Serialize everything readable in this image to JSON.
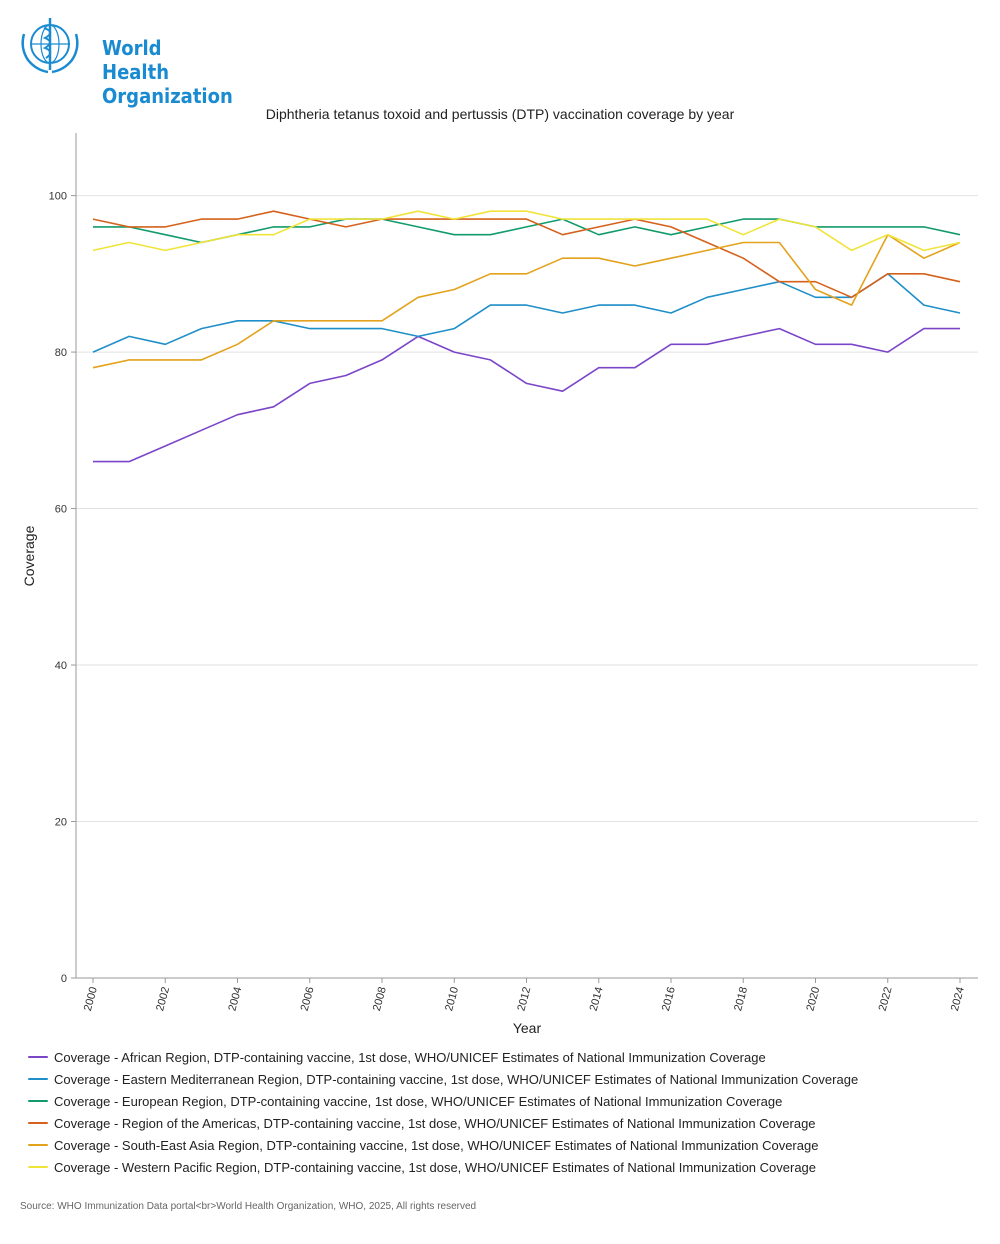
{
  "header": {
    "org_name_line1": "World Health",
    "org_name_line2": "Organization",
    "logo_icon": "who-emblem-icon",
    "brand_color": "#1a8bd1"
  },
  "chart_data": {
    "type": "line",
    "title": "Diphtheria tetanus toxoid and pertussis (DTP) vaccination coverage by year",
    "xlabel": "Year",
    "ylabel": "Coverage",
    "x": [
      2000,
      2001,
      2002,
      2003,
      2004,
      2005,
      2006,
      2007,
      2008,
      2009,
      2010,
      2011,
      2012,
      2013,
      2014,
      2015,
      2016,
      2017,
      2018,
      2019,
      2020,
      2021,
      2022,
      2023,
      2024
    ],
    "x_ticks": [
      "2000",
      "2002",
      "2004",
      "2006",
      "2008",
      "2010",
      "2012",
      "2014",
      "2016",
      "2018",
      "2020",
      "2022",
      "2024"
    ],
    "y_ticks": [
      "0",
      "20",
      "40",
      "60",
      "80",
      "100"
    ],
    "ylim": [
      0,
      108
    ],
    "grid": "horizontal",
    "legend_position": "bottom",
    "series": [
      {
        "name": "Coverage - African Region, DTP-containing vaccine, 1st dose, WHO/UNICEF Estimates of National Immunization Coverage",
        "color": "#7b45c8",
        "values": [
          66,
          66,
          68,
          70,
          72,
          73,
          76,
          77,
          79,
          82,
          80,
          79,
          76,
          75,
          78,
          78,
          81,
          81,
          82,
          83,
          81,
          81,
          80,
          83,
          83
        ]
      },
      {
        "name": "Coverage - Eastern Mediterranean Region, DTP-containing vaccine, 1st dose, WHO/UNICEF Estimates of National Immunization Coverage",
        "color": "#1f8fc8",
        "values": [
          80,
          82,
          81,
          83,
          84,
          84,
          83,
          83,
          83,
          82,
          83,
          86,
          86,
          85,
          86,
          86,
          85,
          87,
          88,
          89,
          87,
          87,
          90,
          86,
          85
        ]
      },
      {
        "name": "Coverage - European Region, DTP-containing vaccine, 1st dose, WHO/UNICEF Estimates of National Immunization Coverage",
        "color": "#129b6a",
        "values": [
          96,
          96,
          95,
          94,
          95,
          96,
          96,
          97,
          97,
          96,
          95,
          95,
          96,
          97,
          95,
          96,
          95,
          96,
          97,
          97,
          96,
          96,
          96,
          96,
          95
        ]
      },
      {
        "name": "Coverage - Region of the Americas, DTP-containing vaccine, 1st dose, WHO/UNICEF Estimates of National Immunization Coverage",
        "color": "#d5621c",
        "values": [
          97,
          96,
          96,
          97,
          97,
          98,
          97,
          96,
          97,
          97,
          97,
          97,
          97,
          95,
          96,
          97,
          96,
          94,
          92,
          89,
          89,
          87,
          90,
          90,
          89
        ]
      },
      {
        "name": "Coverage - South-East Asia Region, DTP-containing vaccine, 1st dose, WHO/UNICEF Estimates of National Immunization Coverage",
        "color": "#e3a21c",
        "values": [
          78,
          79,
          79,
          79,
          81,
          84,
          84,
          84,
          84,
          87,
          88,
          90,
          90,
          92,
          92,
          91,
          92,
          93,
          94,
          94,
          88,
          86,
          95,
          92,
          94
        ]
      },
      {
        "name": "Coverage - Western Pacific Region, DTP-containing vaccine, 1st dose, WHO/UNICEF Estimates of National Immunization Coverage",
        "color": "#f0e43a",
        "values": [
          93,
          94,
          93,
          94,
          95,
          95,
          97,
          97,
          97,
          98,
          97,
          98,
          98,
          97,
          97,
          97,
          97,
          97,
          95,
          97,
          96,
          93,
          95,
          93,
          94
        ]
      }
    ]
  },
  "footer": {
    "source": "Source: WHO Immunization Data portal<br>World Health Organization, WHO, 2025, All rights reserved"
  }
}
